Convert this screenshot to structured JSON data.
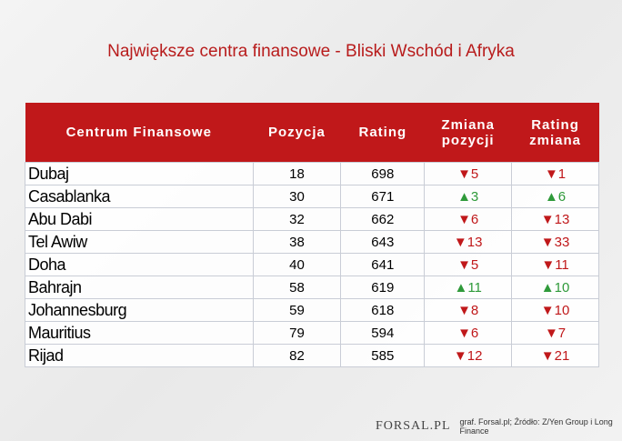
{
  "title": "Największe centra finansowe - Bliski Wschód i Afryka",
  "columns": [
    "Centrum Finansowe",
    "Pozycja",
    "Rating",
    "Zmiana pozycji",
    "Rating zmiana"
  ],
  "colors": {
    "header": "#c0181a",
    "down": "#c0181a",
    "up": "#2f9a3a"
  },
  "rows": [
    {
      "name": "Dubaj",
      "pos": "18",
      "rating": "698",
      "pos_change": "▼5",
      "pos_dir": "down",
      "rating_change": "▼1",
      "rating_dir": "down"
    },
    {
      "name": "Casablanka",
      "pos": "30",
      "rating": "671",
      "pos_change": "▲3",
      "pos_dir": "up",
      "rating_change": "▲6",
      "rating_dir": "up"
    },
    {
      "name": "Abu Dabi",
      "pos": "32",
      "rating": "662",
      "pos_change": "▼6",
      "pos_dir": "down",
      "rating_change": "▼13",
      "rating_dir": "down"
    },
    {
      "name": "Tel Awiw",
      "pos": "38",
      "rating": "643",
      "pos_change": "▼13",
      "pos_dir": "down",
      "rating_change": "▼33",
      "rating_dir": "down"
    },
    {
      "name": "Doha",
      "pos": "40",
      "rating": "641",
      "pos_change": "▼5",
      "pos_dir": "down",
      "rating_change": "▼11",
      "rating_dir": "down"
    },
    {
      "name": "Bahrajn",
      "pos": "58",
      "rating": "619",
      "pos_change": "▲11",
      "pos_dir": "up",
      "rating_change": "▲10",
      "rating_dir": "up"
    },
    {
      "name": "Johannesburg",
      "pos": "59",
      "rating": "618",
      "pos_change": "▼8",
      "pos_dir": "down",
      "rating_change": "▼10",
      "rating_dir": "down"
    },
    {
      "name": "Mauritius",
      "pos": "79",
      "rating": "594",
      "pos_change": "▼6",
      "pos_dir": "down",
      "rating_change": "▼7",
      "rating_dir": "down"
    },
    {
      "name": "Rijad",
      "pos": "82",
      "rating": "585",
      "pos_change": "▼12",
      "pos_dir": "down",
      "rating_change": "▼21",
      "rating_dir": "down"
    }
  ],
  "footer": {
    "logo": "FORSAL.PL",
    "source": "graf. Forsal.pl; Źródło: Z/Yen Group i Long Finance"
  }
}
